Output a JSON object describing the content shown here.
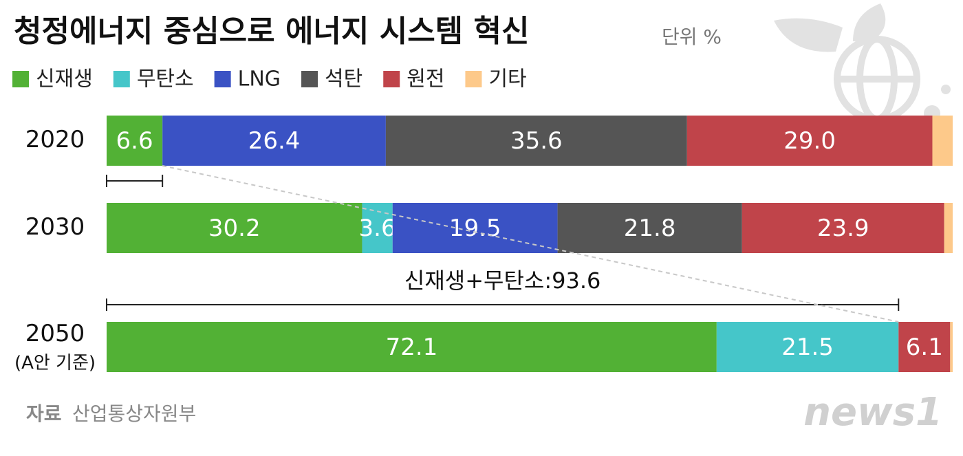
{
  "chart_data": {
    "type": "stacked-bar-horizontal",
    "title": "청정에너지 중심으로 에너지 시스템 혁신",
    "unit": "단위 %",
    "categories": [
      "2020",
      "2030",
      "2050"
    ],
    "category_sublabels": [
      null,
      null,
      "(A안 기준)"
    ],
    "xlim": [
      0,
      100
    ],
    "series": [
      {
        "name": "신재생",
        "color": "#52b135",
        "values": [
          6.6,
          30.2,
          72.1
        ]
      },
      {
        "name": "무탄소",
        "color": "#45c6c9",
        "values": [
          null,
          3.6,
          21.5
        ]
      },
      {
        "name": "LNG",
        "color": "#3a52c4",
        "values": [
          26.4,
          19.5,
          null
        ]
      },
      {
        "name": "석탄",
        "color": "#555555",
        "values": [
          35.6,
          21.8,
          null
        ]
      },
      {
        "name": "원전",
        "color": "#c0444a",
        "values": [
          29.0,
          23.9,
          6.1
        ],
        "value_labels": [
          "29.0",
          "23.9",
          "6.1"
        ]
      },
      {
        "name": "기타",
        "color": "#fdc98a",
        "values": [
          2.4,
          1.0,
          0.3
        ]
      }
    ],
    "annotation": "신재생+무탄소:93.6",
    "source_label": "자료",
    "source": "산업통상자원부",
    "logo": "news1"
  }
}
